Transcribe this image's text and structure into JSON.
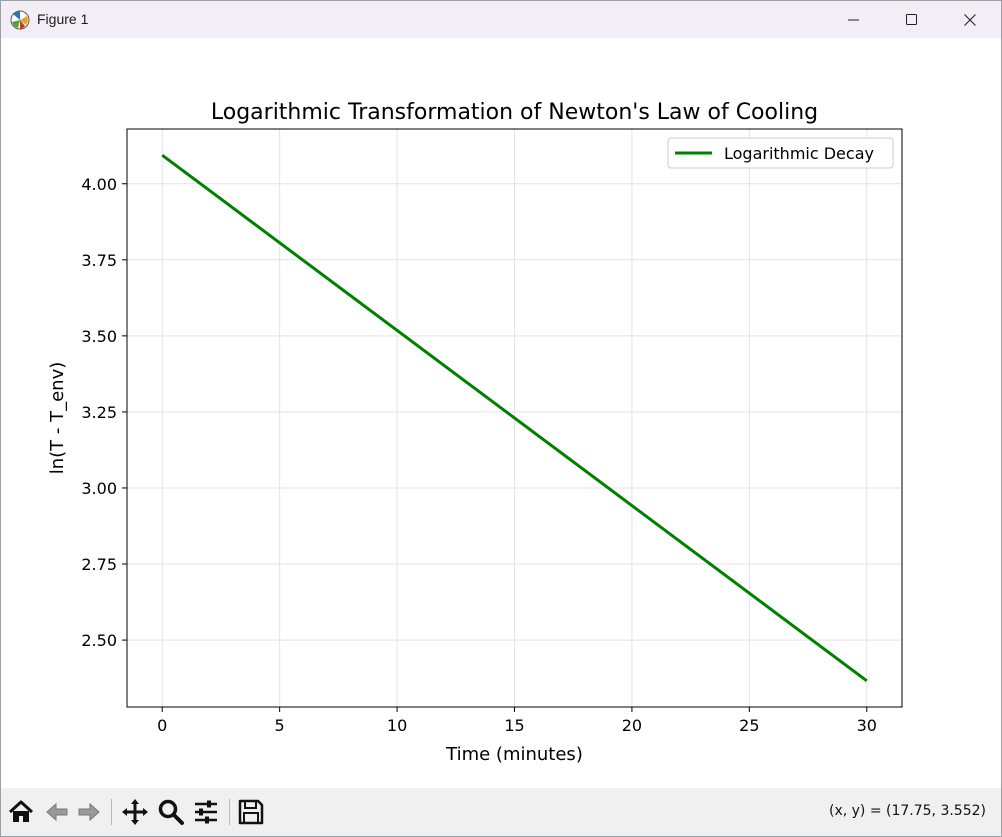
{
  "window": {
    "title": "Figure 1",
    "controls": {
      "minimize": "minimize",
      "maximize": "maximize",
      "close": "close"
    }
  },
  "toolbar": {
    "buttons": [
      {
        "name": "home-icon",
        "label": "Home"
      },
      {
        "name": "back-icon",
        "label": "Back"
      },
      {
        "name": "forward-icon",
        "label": "Forward"
      },
      {
        "name": "pan-icon",
        "label": "Pan"
      },
      {
        "name": "zoom-icon",
        "label": "Zoom"
      },
      {
        "name": "configure-subplots-icon",
        "label": "Configure subplots"
      },
      {
        "name": "save-icon",
        "label": "Save"
      }
    ],
    "coordinates": "(x, y) = (17.75, 3.552)"
  },
  "colors": {
    "line": "#008000",
    "grid": "#e3e3e3",
    "axes": "#000000",
    "titlebar": "#f3eef6",
    "toolbar": "#f0f0f0"
  },
  "chart_data": {
    "type": "line",
    "title": "Logarithmic Transformation of Newton's Law of Cooling",
    "xlabel": "Time (minutes)",
    "ylabel": "ln(T - T_env)",
    "xlim": [
      -1.5,
      31.5
    ],
    "ylim": [
      2.28,
      4.18
    ],
    "xticks": [
      0,
      5,
      10,
      15,
      20,
      25,
      30
    ],
    "xtick_labels": [
      "0",
      "5",
      "10",
      "15",
      "20",
      "25",
      "30"
    ],
    "yticks": [
      2.5,
      2.75,
      3.0,
      3.25,
      3.5,
      3.75,
      4.0
    ],
    "ytick_labels": [
      "2.50",
      "2.75",
      "3.00",
      "3.25",
      "3.50",
      "3.75",
      "4.00"
    ],
    "grid": true,
    "legend_position": "upper right",
    "series": [
      {
        "name": "Logarithmic Decay",
        "color": "#008000",
        "x": [
          0,
          30
        ],
        "y": [
          4.094,
          2.366
        ]
      }
    ]
  }
}
